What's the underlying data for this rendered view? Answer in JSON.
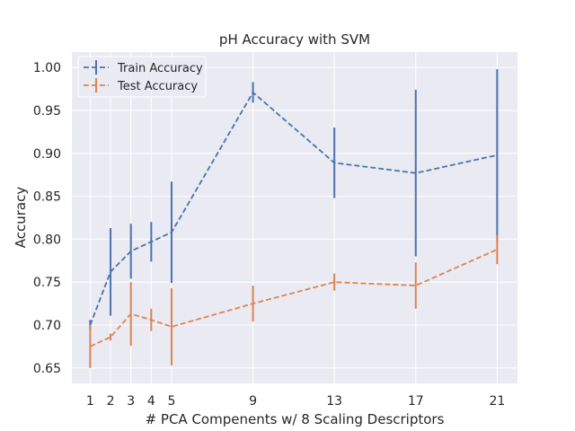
{
  "chart_data": {
    "type": "line",
    "title": "pH Accuracy with SVM",
    "xlabel": "# PCA Compenents w/ 8 Scaling Descriptors",
    "ylabel": "Accuracy",
    "x": [
      1,
      2,
      3,
      4,
      5,
      9,
      13,
      17,
      21
    ],
    "xticks": [
      "1",
      "2",
      "3",
      "4",
      "5",
      "9",
      "13",
      "17",
      "21"
    ],
    "xlim": [
      0.1,
      22.0
    ],
    "ylim": [
      0.632,
      1.018
    ],
    "yticks": [
      0.65,
      0.7,
      0.75,
      0.8,
      0.85,
      0.9,
      0.95,
      1.0
    ],
    "ytick_labels": [
      "0.65",
      "0.70",
      "0.75",
      "0.80",
      "0.85",
      "0.90",
      "0.95",
      "1.00"
    ],
    "grid": true,
    "legend_position": "top-left",
    "series": [
      {
        "name": "Train Accuracy",
        "color": "#4c72b0",
        "linestyle": "dashed",
        "values": [
          0.7,
          0.762,
          0.786,
          0.797,
          0.808,
          0.971,
          0.889,
          0.877,
          0.898
        ],
        "errors": [
          0.006,
          0.051,
          0.032,
          0.023,
          0.059,
          0.012,
          0.041,
          0.097,
          0.1
        ]
      },
      {
        "name": "Test Accuracy",
        "color": "#dd8452",
        "linestyle": "dashed",
        "values": [
          0.675,
          0.686,
          0.713,
          0.706,
          0.698,
          0.725,
          0.75,
          0.746,
          0.788
        ],
        "errors": [
          0.025,
          0.004,
          0.037,
          0.013,
          0.045,
          0.021,
          0.01,
          0.027,
          0.017
        ]
      }
    ]
  }
}
